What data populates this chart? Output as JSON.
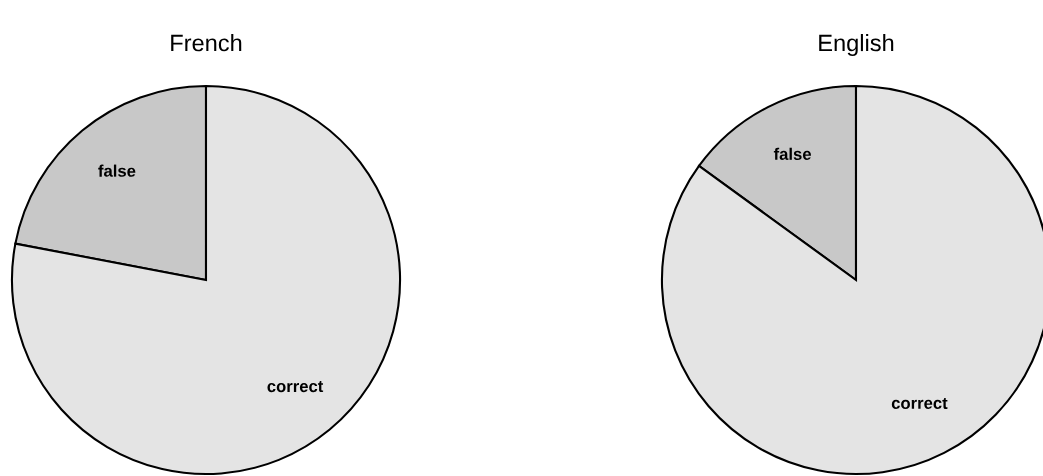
{
  "chart_data": [
    {
      "type": "pie",
      "title": "French",
      "categories": [
        "false",
        "correct"
      ],
      "values": [
        22,
        78
      ],
      "colors": [
        "#c8c8c8",
        "#e4e4e4"
      ]
    },
    {
      "type": "pie",
      "title": "English",
      "categories": [
        "false",
        "correct"
      ],
      "values": [
        15,
        85
      ],
      "colors": [
        "#c8c8c8",
        "#e4e4e4"
      ]
    }
  ]
}
